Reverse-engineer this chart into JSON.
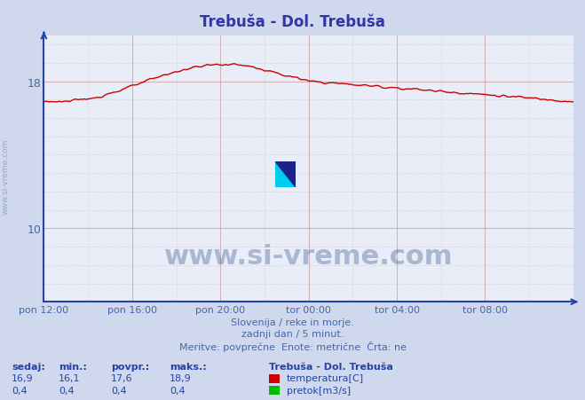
{
  "title": "Trebuša - Dol. Trebuša",
  "title_color": "#3333aa",
  "bg_color": "#d0d8ee",
  "plot_bg_color": "#e8edf8",
  "grid_color_major": "#cc9999",
  "grid_color_minor": "#ccaaaa",
  "x_labels": [
    "pon 12:00",
    "pon 16:00",
    "pon 20:00",
    "tor 00:00",
    "tor 04:00",
    "tor 08:00"
  ],
  "x_ticks": [
    0,
    48,
    96,
    144,
    192,
    240
  ],
  "x_max": 288,
  "y_min": 6,
  "y_max": 20.5,
  "y_ticks": [
    10,
    18
  ],
  "temp_color": "#cc0000",
  "pretok_color": "#00bb00",
  "watermark_text": "www.si-vreme.com",
  "watermark_color": "#1a3a7a",
  "watermark_alpha": 0.3,
  "footer_line1": "Slovenija / reke in morje.",
  "footer_line2": "zadnji dan / 5 minut.",
  "footer_line3": "Meritve: povprečne  Enote: metrične  Črta: ne",
  "footer_color": "#4466aa",
  "stats_color": "#2244aa",
  "legend_title": "Trebuša - Dol. Trebuša",
  "stat_labels": [
    "sedaj:",
    "min.:",
    "povpr.:",
    "maks.:"
  ],
  "temp_stats": [
    "16,9",
    "16,1",
    "17,6",
    "18,9"
  ],
  "pretok_stats": [
    "0,4",
    "0,4",
    "0,4",
    "0,4"
  ],
  "temp_label": "temperatura[C]",
  "pretok_label": "pretok[m3/s]",
  "left_label": "www.si-vreme.com",
  "axis_color": "#2244aa",
  "tick_color": "#4466aa"
}
